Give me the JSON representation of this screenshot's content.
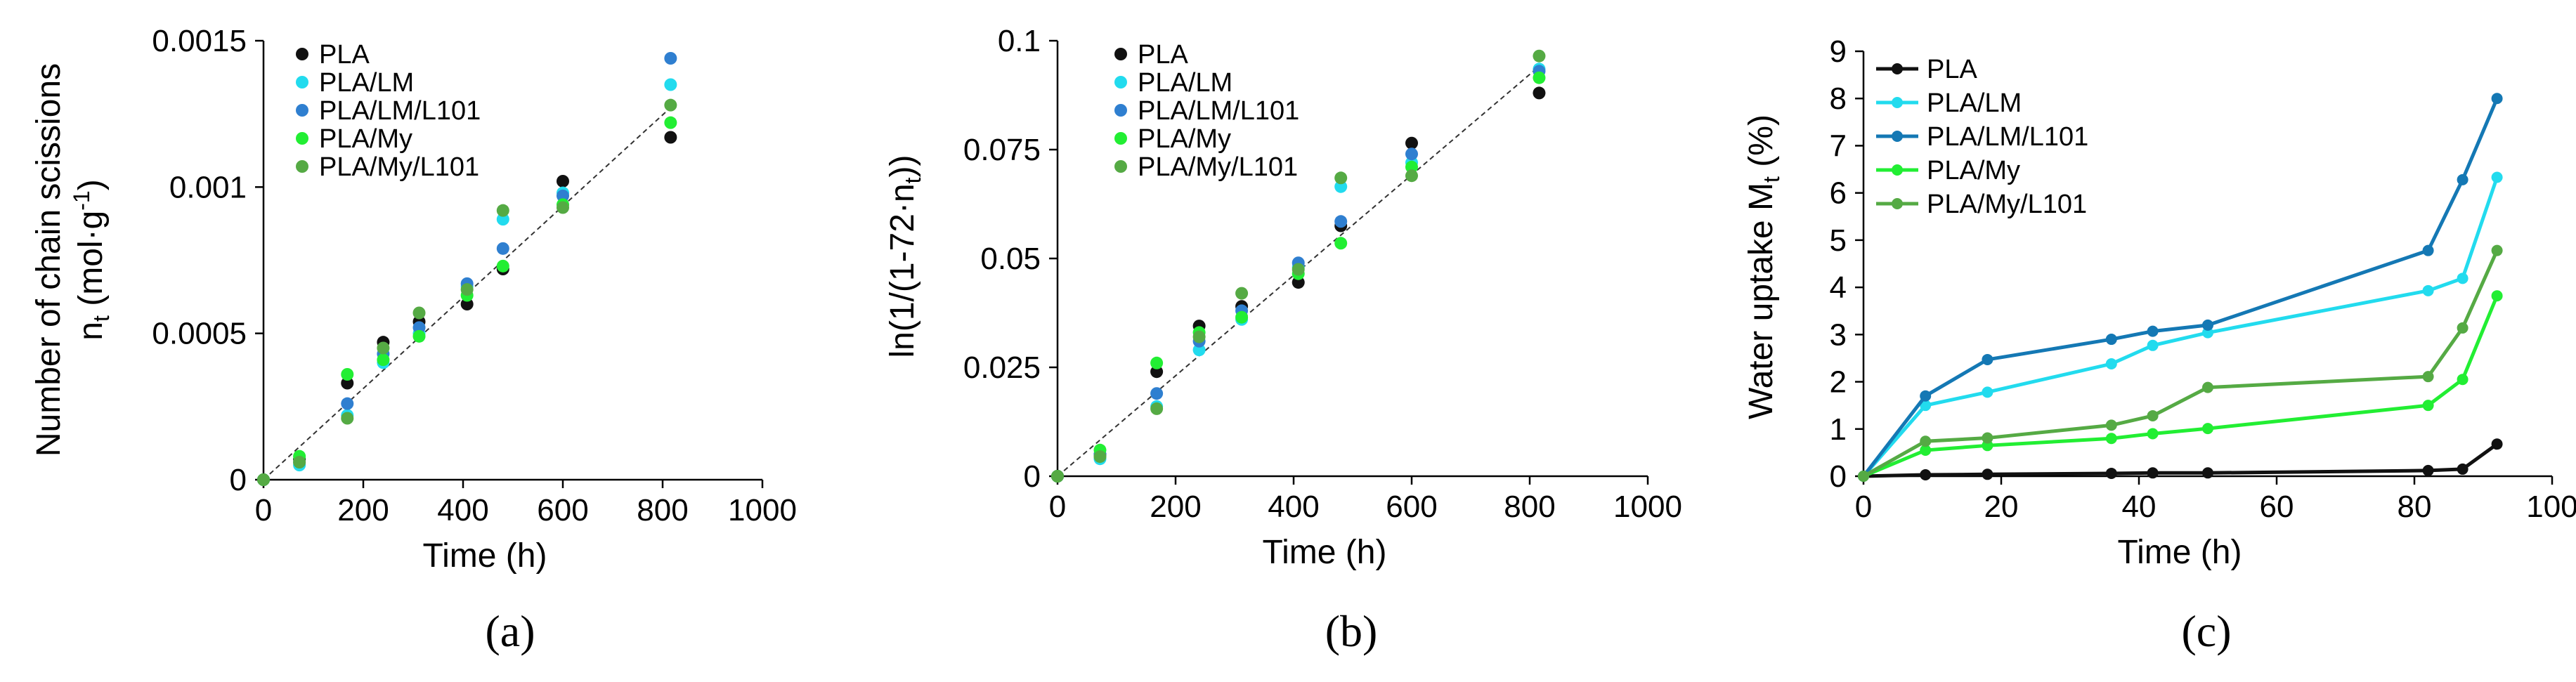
{
  "colors": {
    "PLA": "#111111",
    "PLA/LM": "#22dbee",
    "PLA/LM/L101": "#2f7fd0",
    "PLA/My": "#22ee33",
    "PLA/My/L101": "#55aa44",
    "PLA/LM/L101_line": "#1478b4"
  },
  "chart_data": [
    {
      "type": "scatter",
      "panel_label": "(a)",
      "title": "",
      "xlabel": "Time (h)",
      "ylabel_line1": "Number of chain scissions",
      "ylabel_line2": "n",
      "ylabel_sub": "t",
      "ylabel_unit": " (mol·g",
      "ylabel_sup": "-1",
      "ylabel_close": ")",
      "xlim": [
        0,
        1000
      ],
      "ylim": [
        0,
        0.0015
      ],
      "xticks": [
        0,
        200,
        400,
        600,
        800,
        1000
      ],
      "xtick_labels": [
        "0",
        "200",
        "400",
        "600",
        "800",
        "1000"
      ],
      "yticks": [
        0,
        0.0005,
        0.001,
        0.0015
      ],
      "ytick_labels": [
        "0",
        "0.0005",
        "0.001",
        "0.0015"
      ],
      "trendline": {
        "x": [
          0,
          815
        ],
        "y": [
          0,
          0.00127
        ]
      },
      "series": [
        {
          "name": "PLA",
          "x": [
            0,
            72,
            168,
            240,
            312,
            408,
            480,
            600,
            816
          ],
          "y": [
            0,
            7e-05,
            0.00033,
            0.00047,
            0.00054,
            0.0006,
            0.00072,
            0.00102,
            0.00117
          ]
        },
        {
          "name": "PLA/LM",
          "x": [
            0,
            72,
            168,
            240,
            312,
            408,
            480,
            600,
            816
          ],
          "y": [
            0,
            5e-05,
            0.00022,
            0.0004,
            0.0005,
            0.00066,
            0.00089,
            0.00098,
            0.00135
          ]
        },
        {
          "name": "PLA/LM/L101",
          "x": [
            0,
            72,
            168,
            240,
            312,
            408,
            480,
            600,
            816
          ],
          "y": [
            0,
            6e-05,
            0.00026,
            0.00043,
            0.00052,
            0.00067,
            0.00079,
            0.00097,
            0.00144
          ]
        },
        {
          "name": "PLA/My",
          "x": [
            0,
            72,
            168,
            240,
            312,
            408,
            480,
            600,
            816
          ],
          "y": [
            0,
            8e-05,
            0.00036,
            0.00041,
            0.00049,
            0.00063,
            0.00073,
            0.00094,
            0.00122
          ]
        },
        {
          "name": "PLA/My/L101",
          "x": [
            0,
            72,
            168,
            240,
            312,
            408,
            480,
            600,
            816
          ],
          "y": [
            0,
            6e-05,
            0.00021,
            0.00045,
            0.00057,
            0.00065,
            0.00092,
            0.00093,
            0.00128
          ]
        }
      ]
    },
    {
      "type": "scatter",
      "panel_label": "(b)",
      "title": "",
      "xlabel": "Time (h)",
      "ylabel_main": "ln(1/(1-72·n",
      "ylabel_sub": "t",
      "ylabel_close": "))",
      "xlim": [
        0,
        1000
      ],
      "ylim": [
        0,
        0.1
      ],
      "xticks": [
        0,
        200,
        400,
        600,
        800,
        1000
      ],
      "xtick_labels": [
        "0",
        "200",
        "400",
        "600",
        "800",
        "1000"
      ],
      "yticks": [
        0,
        0.025,
        0.05,
        0.075,
        0.1
      ],
      "ytick_labels": [
        "0",
        "0.025",
        "0.05",
        "0.075",
        "0.1"
      ],
      "trendline": {
        "x": [
          0,
          815
        ],
        "y": [
          0,
          0.094
        ]
      },
      "series": [
        {
          "name": "PLA",
          "x": [
            0,
            72,
            168,
            240,
            312,
            408,
            480,
            600,
            816
          ],
          "y": [
            0,
            0.005,
            0.024,
            0.0345,
            0.039,
            0.0445,
            0.0575,
            0.0765,
            0.088
          ]
        },
        {
          "name": "PLA/LM",
          "x": [
            0,
            72,
            168,
            240,
            312,
            408,
            480,
            600,
            816
          ],
          "y": [
            0,
            0.004,
            0.016,
            0.029,
            0.036,
            0.048,
            0.0665,
            0.072,
            0.0935
          ]
        },
        {
          "name": "PLA/LM/L101",
          "x": [
            0,
            72,
            168,
            240,
            312,
            408,
            480,
            600,
            816
          ],
          "y": [
            0,
            0.005,
            0.019,
            0.031,
            0.038,
            0.049,
            0.0585,
            0.074,
            0.093
          ]
        },
        {
          "name": "PLA/My",
          "x": [
            0,
            72,
            168,
            240,
            312,
            408,
            480,
            600,
            816
          ],
          "y": [
            0,
            0.006,
            0.026,
            0.033,
            0.0365,
            0.0465,
            0.0535,
            0.071,
            0.0915
          ]
        },
        {
          "name": "PLA/My/L101",
          "x": [
            0,
            72,
            168,
            240,
            312,
            408,
            480,
            600,
            816
          ],
          "y": [
            0,
            0.0045,
            0.0155,
            0.032,
            0.042,
            0.0475,
            0.0685,
            0.069,
            0.0965
          ]
        }
      ]
    },
    {
      "type": "line",
      "panel_label": "(c)",
      "title": "",
      "xlabel": "Time (h)",
      "ylabel_main": "Water uptake M",
      "ylabel_sub": "t",
      "ylabel_close": " (%)",
      "xlim": [
        0,
        100
      ],
      "ylim": [
        0,
        9
      ],
      "xticks": [
        0,
        20,
        40,
        60,
        80,
        100
      ],
      "xtick_labels": [
        "0",
        "20",
        "40",
        "60",
        "80",
        "100"
      ],
      "yticks": [
        0,
        1,
        2,
        3,
        4,
        5,
        6,
        7,
        8,
        9
      ],
      "ytick_labels": [
        "0",
        "1",
        "2",
        "3",
        "4",
        "5",
        "6",
        "7",
        "8",
        "9"
      ],
      "series": [
        {
          "name": "PLA",
          "x": [
            0,
            9,
            18,
            36,
            42,
            50,
            82,
            87,
            92
          ],
          "y": [
            0,
            0.03,
            0.04,
            0.06,
            0.07,
            0.07,
            0.12,
            0.15,
            0.68
          ]
        },
        {
          "name": "PLA/LM",
          "x": [
            0,
            9,
            18,
            36,
            42,
            50,
            82,
            87,
            92
          ],
          "y": [
            0,
            1.5,
            1.78,
            2.38,
            2.77,
            3.04,
            3.93,
            4.19,
            6.33
          ]
        },
        {
          "name": "PLA/LM/L101",
          "x": [
            0,
            9,
            18,
            36,
            42,
            50,
            82,
            87,
            92
          ],
          "y": [
            0,
            1.7,
            2.47,
            2.9,
            3.07,
            3.2,
            4.78,
            6.28,
            8.0
          ]
        },
        {
          "name": "PLA/My",
          "x": [
            0,
            9,
            18,
            36,
            42,
            50,
            82,
            87,
            92
          ],
          "y": [
            0,
            0.55,
            0.65,
            0.8,
            0.9,
            1.01,
            1.5,
            2.05,
            3.82
          ]
        },
        {
          "name": "PLA/My/L101",
          "x": [
            0,
            9,
            18,
            36,
            42,
            50,
            82,
            87,
            92
          ],
          "y": [
            0,
            0.74,
            0.81,
            1.08,
            1.28,
            1.88,
            2.11,
            3.14,
            4.78
          ]
        }
      ]
    }
  ]
}
